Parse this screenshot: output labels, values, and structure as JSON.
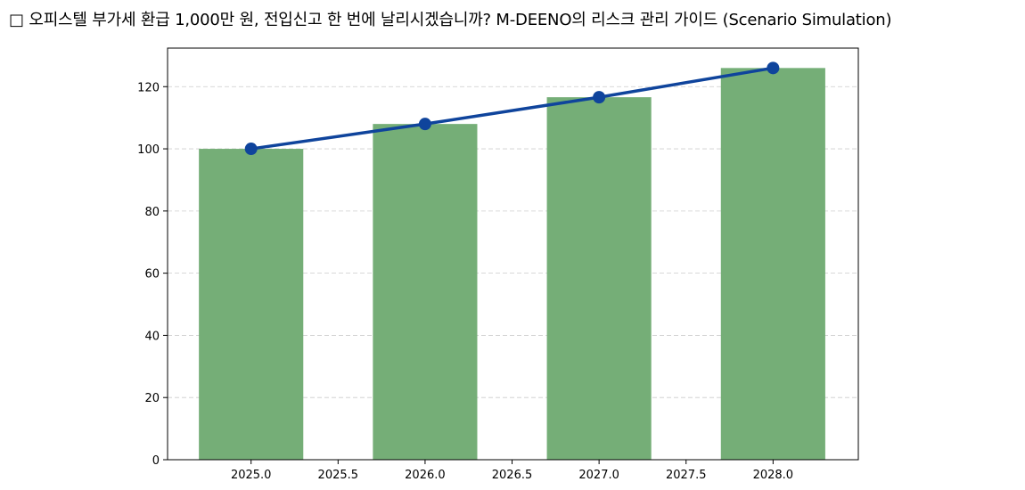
{
  "title": "□ 오피스텔 부가세 환급 1,000만 원, 전입신고 한 번에 날리시겠습니까? M-DEENO의 리스크 관리 가이드 (Scenario Simulation)",
  "colors": {
    "bar": "#75ae77",
    "line": "#0f449c",
    "grid": "#cccccc",
    "axis": "#000000"
  },
  "chart_data": {
    "type": "bar",
    "title": "□ 오피스텔 부가세 환급 1,000만 원, 전입신고 한 번에 날리시겠습니까? M-DEENO의 리스크 관리 가이드 (Scenario Simulation)",
    "xlabel": "",
    "ylabel": "",
    "x": [
      2025,
      2026,
      2027,
      2028
    ],
    "series": [
      {
        "name": "bar",
        "type": "bar",
        "values": [
          100,
          108,
          116.6,
          126.0
        ],
        "color": "#75ae77"
      },
      {
        "name": "line",
        "type": "line",
        "values": [
          100,
          108,
          116.6,
          126.0
        ],
        "color": "#0f449c",
        "marker": "circle"
      }
    ],
    "xlim": [
      2024.52,
      2028.49
    ],
    "ylim": [
      0,
      132.4
    ],
    "xticks": [
      "2025.0",
      "2025.5",
      "2026.0",
      "2026.5",
      "2027.0",
      "2027.5",
      "2028.0"
    ],
    "yticks": [
      "0",
      "20",
      "40",
      "60",
      "80",
      "100",
      "120"
    ],
    "grid": {
      "y": true,
      "style": "dashed"
    },
    "legend": null
  }
}
